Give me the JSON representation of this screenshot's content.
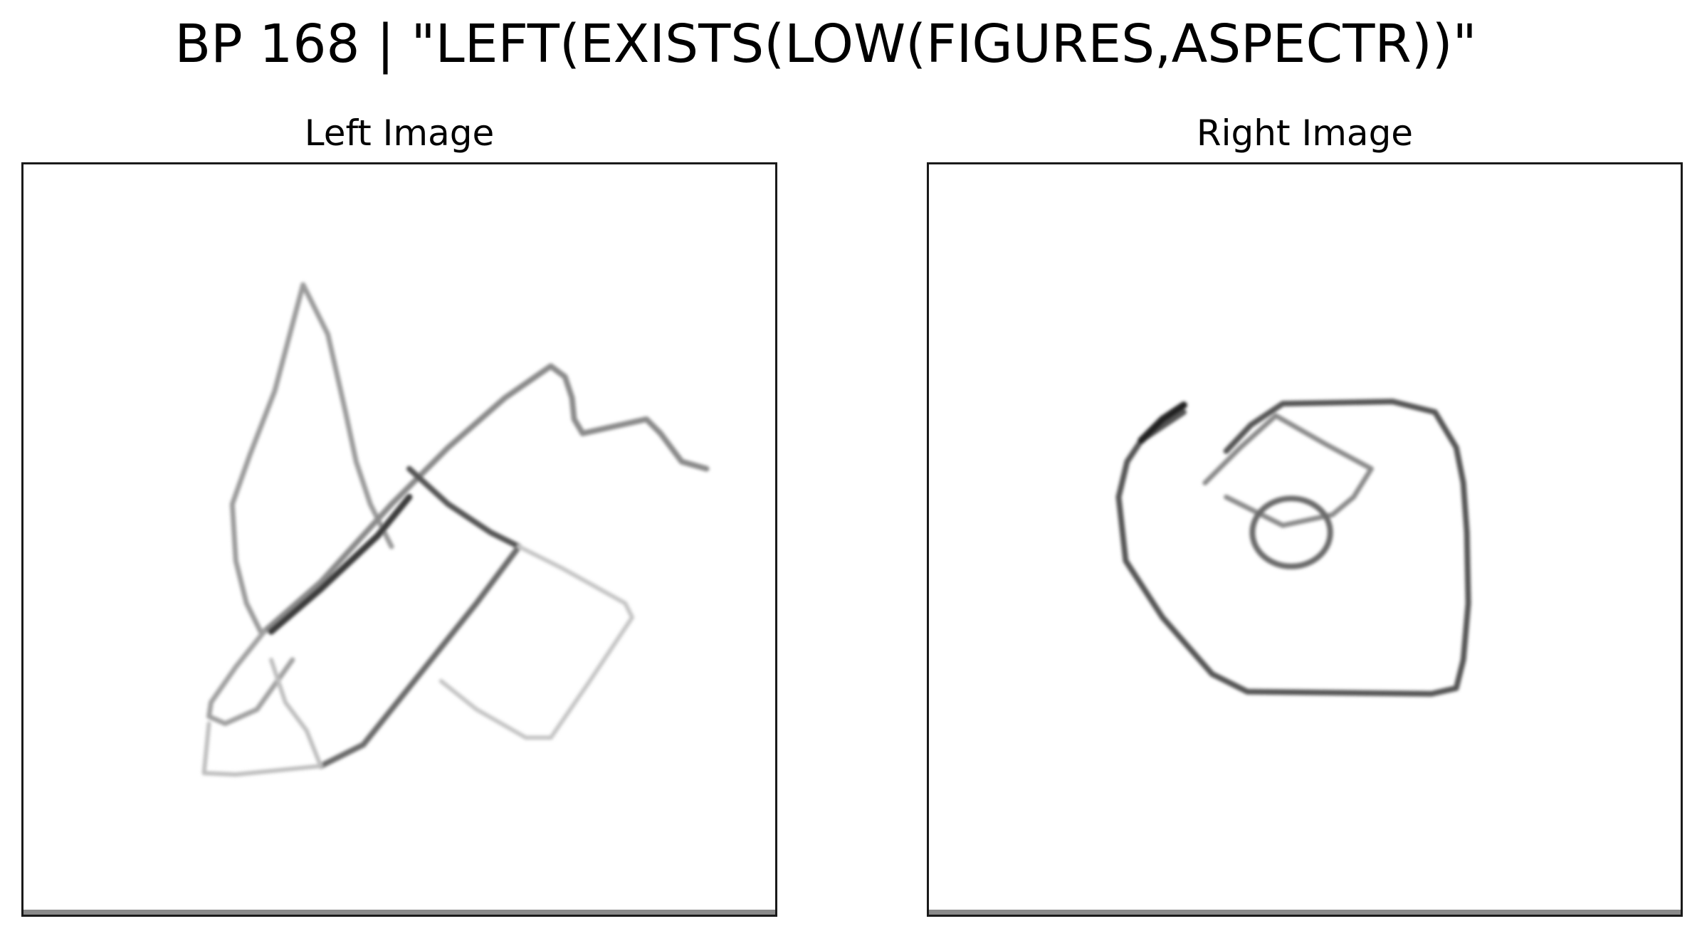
{
  "figure": {
    "title": "BP 168 | \"LEFT(EXISTS(LOW(FIGURES,ASPECTR))\""
  },
  "panels": [
    {
      "label": "Left Image"
    },
    {
      "label": "Right Image"
    }
  ]
}
